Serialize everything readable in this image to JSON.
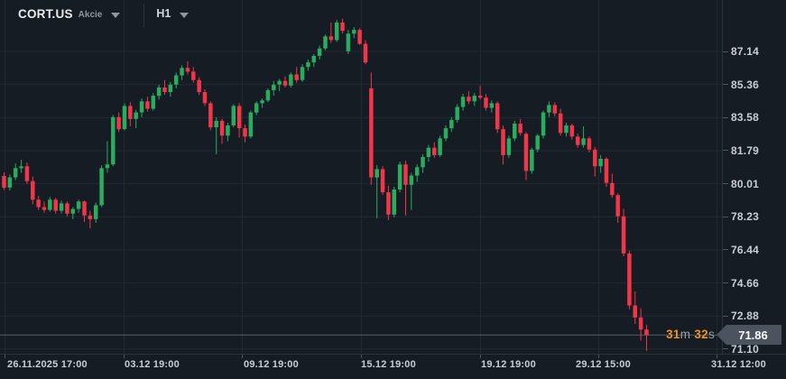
{
  "toolbar": {
    "symbol": "CORT.US",
    "instrument_type": "Akcie",
    "timeframe": "H1"
  },
  "countdown": {
    "minutes_value": "31",
    "minutes_unit": "m",
    "seconds_value": "32",
    "seconds_unit": "s"
  },
  "price_axis": {
    "current_price_label": "71.86",
    "ticks": [
      "87.14",
      "85.36",
      "83.58",
      "81.79",
      "80.01",
      "78.23",
      "76.44",
      "74.66",
      "72.88",
      "71.10"
    ]
  },
  "time_axis": {
    "labels": [
      "26.11.2025  17:00",
      "03.12  19:00",
      "09.12  19:00",
      "15.12  19:00",
      "19.12  19:00",
      "29.12  15:00",
      "31.12  12:00"
    ]
  },
  "colors": {
    "background": "#161C24",
    "bullish": "#2AAB5E",
    "bearish": "#F23649",
    "grid": "#212933",
    "axis_text": "#C9CED5",
    "current_price_line": "#8A939E",
    "price_badge_bg": "#4A535E",
    "countdown_value": "#F0931D",
    "countdown_unit": "#99A0A8",
    "separator": "#2A323C"
  },
  "chart_data": {
    "type": "candlestick",
    "symbol": "CORT.US",
    "timeframe": "H1",
    "title": "CORT.US Akcie H1 candlestick chart",
    "current_price": 71.86,
    "ylim": [
      70.6,
      89.6
    ],
    "grid": true,
    "price_tick_step": 1.78,
    "price_ticks": [
      87.14,
      85.36,
      83.58,
      81.79,
      80.01,
      78.23,
      76.44,
      74.66,
      72.88,
      71.1
    ],
    "time_tick_labels": [
      "26.11.2025 17:00",
      "03.12 19:00",
      "09.12 19:00",
      "15.12 19:00",
      "19.12 19:00",
      "29.12 15:00",
      "31.12 12:00"
    ],
    "ohlc_format": [
      "open",
      "high",
      "low",
      "close"
    ],
    "ohlc": [
      [
        80.43,
        80.62,
        79.68,
        79.8
      ],
      [
        79.8,
        80.5,
        79.65,
        80.35
      ],
      [
        80.35,
        81.1,
        80.2,
        80.85
      ],
      [
        80.85,
        81.3,
        80.6,
        80.95
      ],
      [
        80.95,
        81.15,
        80.0,
        80.15
      ],
      [
        80.15,
        80.4,
        78.9,
        79.15
      ],
      [
        79.15,
        79.35,
        78.6,
        78.75
      ],
      [
        78.75,
        79.05,
        78.45,
        78.6
      ],
      [
        78.6,
        79.3,
        78.5,
        79.15
      ],
      [
        79.15,
        79.25,
        78.4,
        78.55
      ],
      [
        78.55,
        79.1,
        78.4,
        78.95
      ],
      [
        78.95,
        79.05,
        78.25,
        78.4
      ],
      [
        78.4,
        78.75,
        78.1,
        78.65
      ],
      [
        78.65,
        79.15,
        78.45,
        79.05
      ],
      [
        79.05,
        79.1,
        77.95,
        78.3
      ],
      [
        78.3,
        78.55,
        77.6,
        78.1
      ],
      [
        78.1,
        79.0,
        77.9,
        78.85
      ],
      [
        78.85,
        81.0,
        78.75,
        80.85
      ],
      [
        80.85,
        82.3,
        80.6,
        81.05
      ],
      [
        81.05,
        83.7,
        80.95,
        83.6
      ],
      [
        83.6,
        83.85,
        82.8,
        82.95
      ],
      [
        82.95,
        84.35,
        82.9,
        84.2
      ],
      [
        84.2,
        84.4,
        83.1,
        83.5
      ],
      [
        83.5,
        84.0,
        83.0,
        83.85
      ],
      [
        83.85,
        84.6,
        83.6,
        84.45
      ],
      [
        84.45,
        84.7,
        83.9,
        84.05
      ],
      [
        84.05,
        84.9,
        83.95,
        84.75
      ],
      [
        84.75,
        85.35,
        84.55,
        85.2
      ],
      [
        85.2,
        85.6,
        84.8,
        84.95
      ],
      [
        84.95,
        85.5,
        84.7,
        85.35
      ],
      [
        85.35,
        86.0,
        85.15,
        85.85
      ],
      [
        85.85,
        86.4,
        85.6,
        86.25
      ],
      [
        86.25,
        86.6,
        85.9,
        86.05
      ],
      [
        86.05,
        86.3,
        85.45,
        85.6
      ],
      [
        85.6,
        85.75,
        84.8,
        84.95
      ],
      [
        84.95,
        85.1,
        84.2,
        84.35
      ],
      [
        84.35,
        84.45,
        82.9,
        83.05
      ],
      [
        83.05,
        83.6,
        81.6,
        83.4
      ],
      [
        83.4,
        83.5,
        82.15,
        82.6
      ],
      [
        82.6,
        83.3,
        82.3,
        83.15
      ],
      [
        83.15,
        84.3,
        83.05,
        84.2
      ],
      [
        84.2,
        84.35,
        82.5,
        83.0
      ],
      [
        83.0,
        83.2,
        82.25,
        82.55
      ],
      [
        82.55,
        83.95,
        82.45,
        83.85
      ],
      [
        83.85,
        84.45,
        83.7,
        84.35
      ],
      [
        84.35,
        84.6,
        84.1,
        84.5
      ],
      [
        84.5,
        85.15,
        84.4,
        85.05
      ],
      [
        85.05,
        85.55,
        84.75,
        85.35
      ],
      [
        85.35,
        85.65,
        85.0,
        85.55
      ],
      [
        85.55,
        85.8,
        85.2,
        85.3
      ],
      [
        85.3,
        86.0,
        85.2,
        85.9
      ],
      [
        85.9,
        86.3,
        85.45,
        85.6
      ],
      [
        85.6,
        86.45,
        85.5,
        86.3
      ],
      [
        86.3,
        86.7,
        86.1,
        86.55
      ],
      [
        86.55,
        87.0,
        86.3,
        86.9
      ],
      [
        86.9,
        87.45,
        86.7,
        87.3
      ],
      [
        87.3,
        88.05,
        87.2,
        87.95
      ],
      [
        87.95,
        88.7,
        87.6,
        87.75
      ],
      [
        87.75,
        88.85,
        87.65,
        88.7
      ],
      [
        88.7,
        88.9,
        88.1,
        88.25
      ],
      [
        87.15,
        88.3,
        87.0,
        88.1
      ],
      [
        88.1,
        88.45,
        87.85,
        88.3
      ],
      [
        88.3,
        88.4,
        87.5,
        87.55
      ],
      [
        87.55,
        87.75,
        86.45,
        86.55
      ],
      [
        85.15,
        86.0,
        79.95,
        80.35
      ],
      [
        80.35,
        81.0,
        78.15,
        80.8
      ],
      [
        80.8,
        80.95,
        79.4,
        79.55
      ],
      [
        79.55,
        79.9,
        78.05,
        78.35
      ],
      [
        78.35,
        79.85,
        78.2,
        79.7
      ],
      [
        79.7,
        81.2,
        79.55,
        81.05
      ],
      [
        81.05,
        81.25,
        78.3,
        79.95
      ],
      [
        79.95,
        80.6,
        78.6,
        80.45
      ],
      [
        80.45,
        81.05,
        80.1,
        80.9
      ],
      [
        80.9,
        81.6,
        80.6,
        81.45
      ],
      [
        81.45,
        82.1,
        81.2,
        81.95
      ],
      [
        81.95,
        82.25,
        81.4,
        81.55
      ],
      [
        81.55,
        82.6,
        81.45,
        82.45
      ],
      [
        82.45,
        83.15,
        82.3,
        83.0
      ],
      [
        83.0,
        83.6,
        82.8,
        83.45
      ],
      [
        83.45,
        84.3,
        83.3,
        84.15
      ],
      [
        84.15,
        84.85,
        83.95,
        84.7
      ],
      [
        84.7,
        85.0,
        84.3,
        84.45
      ],
      [
        84.45,
        84.9,
        84.2,
        84.75
      ],
      [
        84.75,
        85.3,
        84.55,
        84.65
      ],
      [
        84.65,
        84.85,
        83.95,
        84.1
      ],
      [
        84.1,
        84.5,
        83.85,
        84.35
      ],
      [
        84.35,
        84.45,
        82.75,
        82.95
      ],
      [
        82.95,
        83.15,
        81.05,
        81.55
      ],
      [
        81.55,
        82.6,
        81.4,
        82.45
      ],
      [
        82.45,
        83.4,
        82.3,
        83.25
      ],
      [
        83.25,
        83.5,
        82.6,
        82.75
      ],
      [
        82.7,
        82.8,
        80.2,
        80.7
      ],
      [
        80.7,
        81.95,
        80.55,
        81.85
      ],
      [
        81.85,
        82.7,
        81.7,
        82.6
      ],
      [
        82.6,
        83.95,
        82.45,
        83.85
      ],
      [
        83.85,
        84.45,
        83.6,
        84.25
      ],
      [
        84.25,
        84.4,
        83.65,
        83.8
      ],
      [
        83.8,
        84.05,
        82.6,
        82.75
      ],
      [
        82.75,
        83.3,
        82.55,
        83.15
      ],
      [
        83.15,
        83.25,
        82.4,
        82.55
      ],
      [
        82.55,
        82.7,
        81.95,
        82.1
      ],
      [
        82.1,
        83.1,
        81.95,
        82.45
      ],
      [
        82.45,
        82.55,
        81.7,
        81.85
      ],
      [
        81.85,
        82.0,
        80.4,
        80.95
      ],
      [
        80.95,
        81.55,
        80.6,
        81.35
      ],
      [
        81.35,
        81.45,
        79.85,
        80.05
      ],
      [
        80.05,
        80.55,
        79.25,
        79.4
      ],
      [
        79.4,
        79.5,
        77.9,
        78.25
      ],
      [
        78.25,
        78.65,
        76.1,
        76.25
      ],
      [
        76.25,
        76.4,
        73.25,
        73.45
      ],
      [
        73.45,
        74.2,
        72.45,
        72.8
      ],
      [
        72.8,
        73.3,
        71.55,
        72.15
      ],
      [
        72.15,
        72.4,
        71.0,
        71.86
      ]
    ]
  }
}
